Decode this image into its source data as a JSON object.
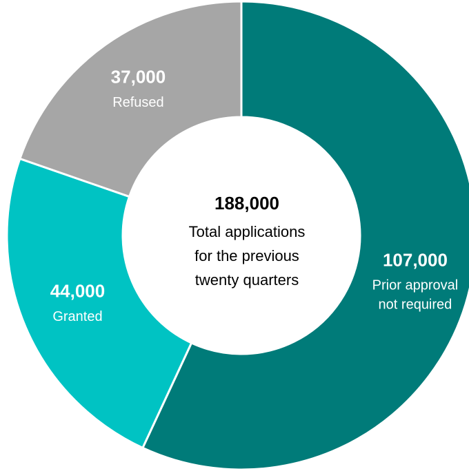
{
  "chart_data": {
    "type": "donut",
    "categories": [
      "Prior approval not required",
      "Granted",
      "Refused"
    ],
    "values": [
      107000,
      44000,
      37000
    ],
    "value_labels": [
      "107,000",
      "44,000",
      "37,000"
    ],
    "colors": [
      "#007b79",
      "#00c3c3",
      "#a6a6a6"
    ],
    "center_title": "188,000",
    "center_text": [
      "Total applications",
      "for the previous",
      "twenty quarters"
    ]
  }
}
